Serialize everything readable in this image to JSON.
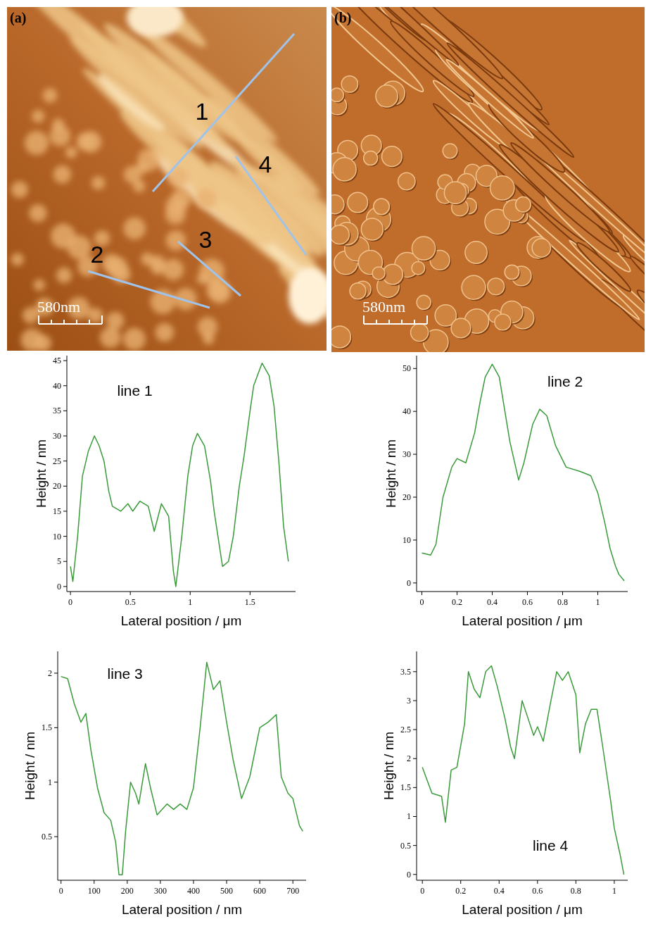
{
  "images": [
    {
      "label": "(a)",
      "scale_bar": "580nm",
      "line_labels": [
        "1",
        "2",
        "3",
        "4"
      ]
    },
    {
      "label": "(b)",
      "scale_bar": "580nm"
    }
  ],
  "chart_data": [
    {
      "type": "line",
      "title": "line 1",
      "x_label": "Lateral position / μm",
      "y_label": "Height / nm",
      "color": "#3a9a3a",
      "x": [
        0,
        0.02,
        0.06,
        0.1,
        0.15,
        0.2,
        0.24,
        0.28,
        0.32,
        0.35,
        0.42,
        0.48,
        0.52,
        0.58,
        0.65,
        0.7,
        0.76,
        0.82,
        0.86,
        0.88,
        0.93,
        0.98,
        1.02,
        1.06,
        1.12,
        1.17,
        1.2,
        1.27,
        1.32,
        1.36,
        1.41,
        1.45,
        1.5,
        1.53,
        1.6,
        1.66,
        1.7,
        1.74,
        1.78,
        1.82
      ],
      "values": [
        4,
        1,
        10,
        22,
        27,
        30,
        28,
        25,
        19,
        16,
        15,
        16.5,
        15,
        17,
        16,
        11,
        16.5,
        14,
        3,
        0,
        10,
        22,
        28,
        30.5,
        28,
        21,
        15,
        4,
        5,
        10,
        20,
        26,
        35,
        40,
        44.5,
        42,
        36,
        25,
        12,
        5
      ],
      "xlim": [
        -0.03,
        1.88
      ],
      "ylim": [
        -1,
        46
      ],
      "xticks": [
        0,
        0.5,
        1,
        1.5
      ],
      "yticks": [
        0,
        5,
        10,
        15,
        20,
        25,
        30,
        35,
        40,
        45
      ]
    },
    {
      "type": "line",
      "title": "line 2",
      "x_label": "Lateral position / μm",
      "y_label": "Height / nm",
      "color": "#3a9a3a",
      "x": [
        0,
        0.05,
        0.08,
        0.12,
        0.17,
        0.2,
        0.25,
        0.3,
        0.33,
        0.36,
        0.4,
        0.44,
        0.5,
        0.55,
        0.58,
        0.63,
        0.67,
        0.71,
        0.76,
        0.82,
        0.9,
        0.96,
        1.0,
        1.04,
        1.07,
        1.1,
        1.12,
        1.15
      ],
      "values": [
        7,
        6.5,
        9,
        20,
        27,
        29,
        28,
        35,
        42,
        48,
        51,
        48,
        33,
        24,
        28,
        37,
        40.5,
        39,
        32,
        27,
        26,
        25,
        21,
        14,
        8,
        4,
        2,
        0.5
      ],
      "xlim": [
        -0.03,
        1.17
      ],
      "ylim": [
        -2,
        53
      ],
      "xticks": [
        0,
        0.2,
        0.4,
        0.6,
        0.8,
        1
      ],
      "yticks": [
        0,
        10,
        20,
        30,
        40,
        50
      ]
    },
    {
      "type": "line",
      "title": "line 3",
      "x_label": "Lateral position / nm",
      "y_label": "Height / nm",
      "color": "#3a9a3a",
      "x": [
        0,
        20,
        40,
        60,
        75,
        90,
        110,
        130,
        150,
        165,
        175,
        185,
        195,
        210,
        225,
        235,
        255,
        270,
        290,
        320,
        340,
        360,
        380,
        400,
        420,
        440,
        460,
        480,
        500,
        520,
        545,
        570,
        600,
        625,
        650,
        665,
        685,
        700,
        720,
        730
      ],
      "values": [
        1.97,
        1.95,
        1.72,
        1.55,
        1.63,
        1.3,
        0.95,
        0.72,
        0.65,
        0.45,
        0.15,
        0.15,
        0.55,
        1.0,
        0.9,
        0.8,
        1.17,
        0.95,
        0.7,
        0.8,
        0.75,
        0.8,
        0.75,
        0.95,
        1.5,
        2.1,
        1.85,
        1.93,
        1.55,
        1.2,
        0.85,
        1.05,
        1.5,
        1.55,
        1.62,
        1.05,
        0.9,
        0.85,
        0.6,
        0.55
      ],
      "xlim": [
        -10,
        740
      ],
      "ylim": [
        0.1,
        2.2
      ],
      "xticks": [
        0,
        100,
        200,
        300,
        400,
        500,
        600,
        700
      ],
      "yticks": [
        0.5,
        1,
        1.5,
        2
      ]
    },
    {
      "type": "line",
      "title": "line 4",
      "x_label": "Lateral position / μm",
      "y_label": "Height / nm",
      "color": "#3a9a3a",
      "x": [
        0,
        0.05,
        0.1,
        0.12,
        0.15,
        0.18,
        0.22,
        0.24,
        0.27,
        0.3,
        0.33,
        0.36,
        0.39,
        0.43,
        0.46,
        0.48,
        0.5,
        0.52,
        0.55,
        0.58,
        0.6,
        0.63,
        0.67,
        0.7,
        0.73,
        0.76,
        0.8,
        0.82,
        0.85,
        0.88,
        0.91,
        0.94,
        0.98,
        1.0,
        1.03,
        1.05
      ],
      "values": [
        1.85,
        1.4,
        1.35,
        0.9,
        1.8,
        1.85,
        2.6,
        3.5,
        3.2,
        3.05,
        3.5,
        3.6,
        3.25,
        2.7,
        2.2,
        2.0,
        2.5,
        3.0,
        2.7,
        2.4,
        2.55,
        2.3,
        3.0,
        3.5,
        3.35,
        3.5,
        3.1,
        2.1,
        2.6,
        2.85,
        2.85,
        2.2,
        1.3,
        0.8,
        0.35,
        0
      ],
      "xlim": [
        -0.03,
        1.07
      ],
      "ylim": [
        -0.1,
        3.85
      ],
      "xticks": [
        0,
        0.2,
        0.4,
        0.6,
        0.8,
        1
      ],
      "yticks": [
        0,
        0.5,
        1,
        1.5,
        2,
        2.5,
        3,
        3.5
      ]
    }
  ]
}
